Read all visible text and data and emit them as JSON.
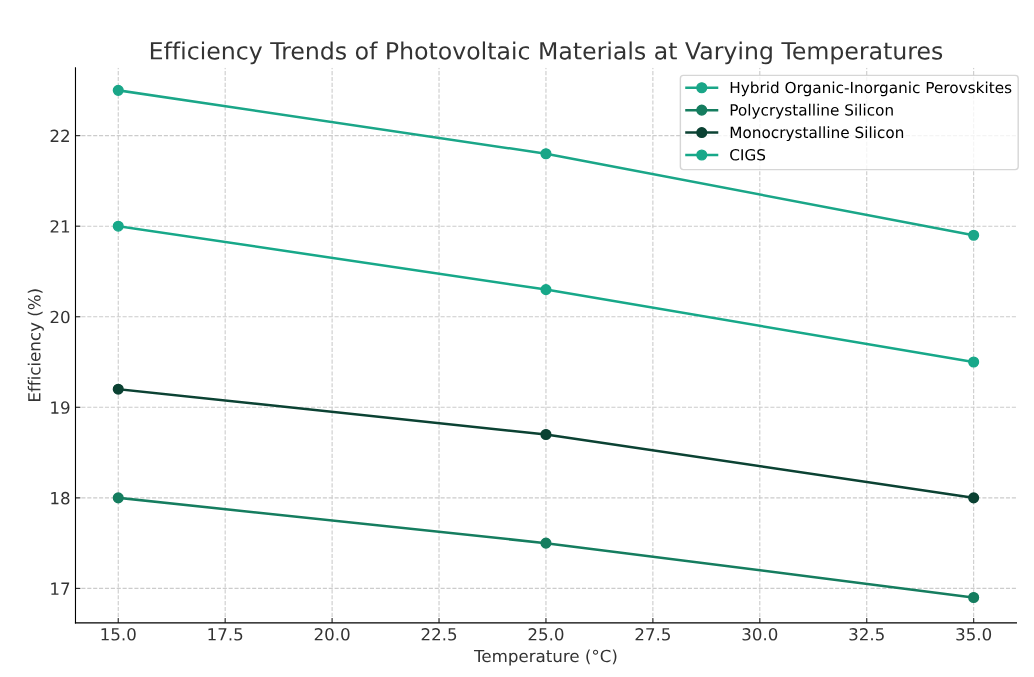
{
  "chart_data": {
    "type": "line",
    "title": "Efficiency Trends of Photovoltaic Materials at Varying Temperatures",
    "xlabel": "Temperature (°C)",
    "ylabel": "Efficiency (%)",
    "x": [
      15,
      25,
      35
    ],
    "series": [
      {
        "name": "Hybrid Organic-Inorganic Perovskites",
        "color": "#1aa688",
        "values": [
          22.5,
          21.8,
          20.9
        ]
      },
      {
        "name": "Polycrystalline Silicon",
        "color": "#157d5f",
        "values": [
          18.0,
          17.5,
          16.9
        ]
      },
      {
        "name": "Monocrystalline Silicon",
        "color": "#0b4233",
        "values": [
          19.2,
          18.7,
          18.0
        ]
      },
      {
        "name": "CIGS",
        "color": "#17a889",
        "values": [
          21.0,
          20.3,
          19.5
        ]
      }
    ],
    "xlim": [
      14.0,
      36.0
    ],
    "xticks": [
      {
        "value": 15,
        "label": "15.0"
      },
      {
        "value": 17.5,
        "label": "17.5"
      },
      {
        "value": 20,
        "label": "20.0"
      },
      {
        "value": 22.5,
        "label": "22.5"
      },
      {
        "value": 25,
        "label": "25.0"
      },
      {
        "value": 27.5,
        "label": "27.5"
      },
      {
        "value": 30,
        "label": "30.0"
      },
      {
        "value": 32.5,
        "label": "32.5"
      },
      {
        "value": 35,
        "label": "35.0"
      }
    ],
    "ylim": [
      16.62,
      22.75
    ],
    "yticks": [
      17,
      18,
      19,
      20,
      21,
      22
    ],
    "grid": true,
    "legend": "top right",
    "marker": "circle",
    "line_style": "solid"
  }
}
